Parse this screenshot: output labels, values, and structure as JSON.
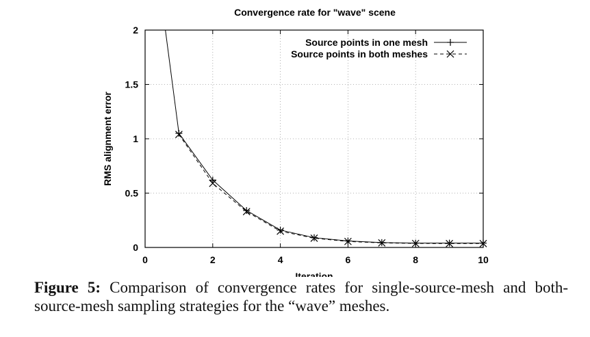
{
  "chart_data": {
    "type": "line",
    "title": "Convergence rate for \"wave\" scene",
    "xlabel": "Iteration",
    "ylabel": "RMS alignment error",
    "xlim": [
      0,
      10
    ],
    "ylim": [
      0,
      2
    ],
    "xticks": [
      0,
      2,
      4,
      6,
      8,
      10
    ],
    "yticks": [
      0,
      0.5,
      1,
      1.5,
      2
    ],
    "xtick_labels": [
      "0",
      "2",
      "4",
      "6",
      "8",
      "10"
    ],
    "ytick_labels": [
      "0",
      "0.5",
      "1",
      "1.5",
      "2"
    ],
    "grid": true,
    "legend_position": "top-right",
    "series": [
      {
        "name": "Source points in one mesh",
        "marker": "plus",
        "line_style": "solid",
        "x": [
          0.6,
          1,
          2,
          3,
          4,
          5,
          6,
          7,
          8,
          9,
          10
        ],
        "y": [
          2.0,
          1.05,
          0.62,
          0.34,
          0.16,
          0.09,
          0.06,
          0.045,
          0.04,
          0.04,
          0.04
        ]
      },
      {
        "name": "Source points in both meshes",
        "marker": "x",
        "line_style": "dashed",
        "x": [
          1,
          2,
          3,
          4,
          5,
          6,
          7,
          8,
          9,
          10
        ],
        "y": [
          1.04,
          0.59,
          0.33,
          0.15,
          0.085,
          0.055,
          0.042,
          0.037,
          0.036,
          0.036
        ]
      }
    ]
  },
  "caption": {
    "label": "Figure 5:",
    "text": "Comparison of convergence rates for single-source-mesh and both-source-mesh sampling strategies for the “wave” meshes."
  }
}
